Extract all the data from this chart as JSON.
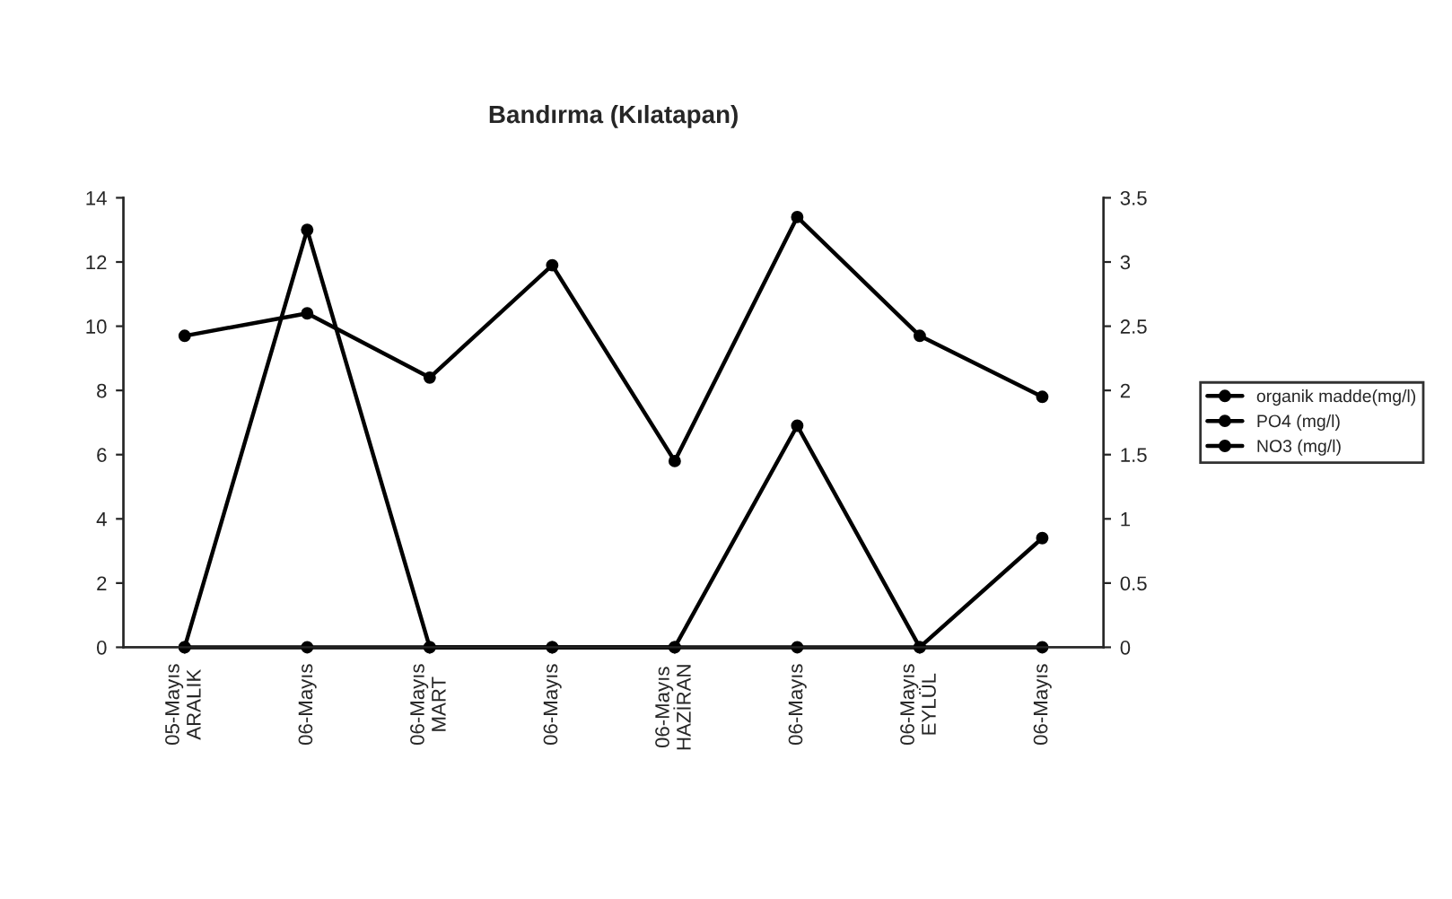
{
  "chart_data": {
    "type": "line",
    "title": "Bandırma (Kılatapan)",
    "categories": [
      "05-Mayıs\nARALIK",
      "06-Mayıs",
      "06-Mayıs\nMART",
      "06-Mayıs",
      "06-Mayıs\nHAZİRAN",
      "06-Mayıs",
      "06-Mayıs\nEYLÜL",
      "06-Mayıs"
    ],
    "series": [
      {
        "name": "organik madde(mg/l)",
        "color": "#000000",
        "values": [
          9.7,
          10.4,
          8.4,
          11.9,
          5.8,
          13.4,
          9.7,
          7.8
        ]
      },
      {
        "name": "PO4 (mg/l)",
        "color": "#000000",
        "axis": "y2",
        "values": [
          0,
          0,
          0,
          0,
          0,
          0,
          0,
          0
        ]
      },
      {
        "name": "NO3 (mg/l)",
        "color": "#000000",
        "values": [
          0,
          13,
          0,
          0,
          0,
          6.9,
          0,
          3.4
        ]
      }
    ],
    "ylim": [
      0,
      14
    ],
    "yticks": [
      0,
      2,
      4,
      6,
      8,
      10,
      12,
      14
    ],
    "y2lim": [
      0,
      3.5
    ],
    "y2ticks": [
      0,
      0.5,
      1,
      1.5,
      2,
      2.5,
      3,
      3.5
    ],
    "marker": "circle",
    "line_style": "solid",
    "grid": false,
    "legend": "right"
  }
}
